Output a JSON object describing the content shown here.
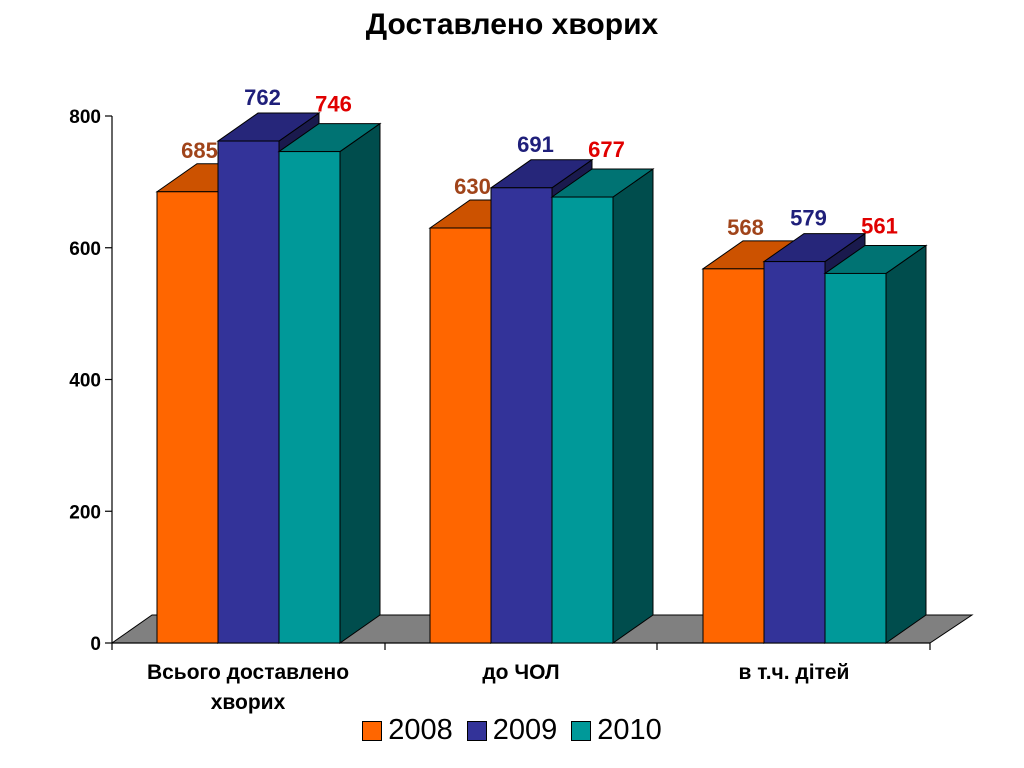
{
  "chart_data": {
    "type": "bar",
    "title": "Доставлено хворих",
    "categories": [
      "Всього доставлено хворих",
      "до ЧОЛ",
      "в т.ч. дітей"
    ],
    "series": [
      {
        "name": "2008",
        "values": [
          685,
          630,
          568
        ],
        "color": "#FF6600",
        "top_color": "#CC5200",
        "side_color": "#7A3000",
        "label_color": "#A0441A"
      },
      {
        "name": "2009",
        "values": [
          762,
          691,
          579
        ],
        "color": "#333399",
        "top_color": "#26267A",
        "side_color": "#1A1A4D",
        "label_color": "#1F1F7A"
      },
      {
        "name": "2010",
        "values": [
          746,
          677,
          561
        ],
        "color": "#009999",
        "top_color": "#007373",
        "side_color": "#004D4D",
        "label_color": "#E00000"
      }
    ],
    "ylim": [
      0,
      800
    ],
    "yticks": [
      0,
      200,
      400,
      600,
      800
    ],
    "xlabel": "",
    "ylabel": "",
    "legend_position": "bottom",
    "grid": false,
    "floor_color": "#808080"
  }
}
